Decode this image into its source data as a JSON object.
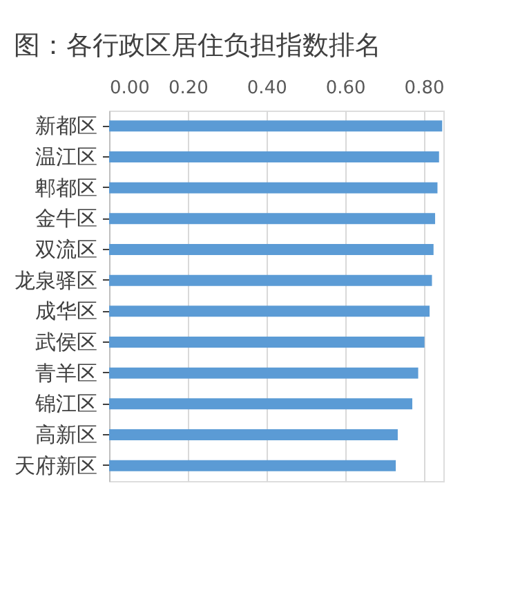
{
  "chart_data": {
    "type": "bar",
    "orientation": "horizontal",
    "title": "图：各行政区居住负担指数排名",
    "categories": [
      "新都区",
      "温江区",
      "郫都区",
      "金牛区",
      "双流区",
      "龙泉驿区",
      "成华区",
      "武侯区",
      "青羊区",
      "锦江区",
      "高新区",
      "天府新区"
    ],
    "values": [
      0.847,
      0.839,
      0.835,
      0.829,
      0.825,
      0.821,
      0.815,
      0.802,
      0.786,
      0.771,
      0.734,
      0.729
    ],
    "color": "#5b9bd5",
    "xlim": [
      0,
      0.85
    ],
    "xticks": [
      {
        "value": 0,
        "label": "0.00"
      },
      {
        "value": 0.2,
        "label": "0.20"
      },
      {
        "value": 0.4,
        "label": "0.40"
      },
      {
        "value": 0.6,
        "label": "0.60"
      },
      {
        "value": 0.8,
        "label": "0.80"
      }
    ],
    "grid": "x"
  }
}
